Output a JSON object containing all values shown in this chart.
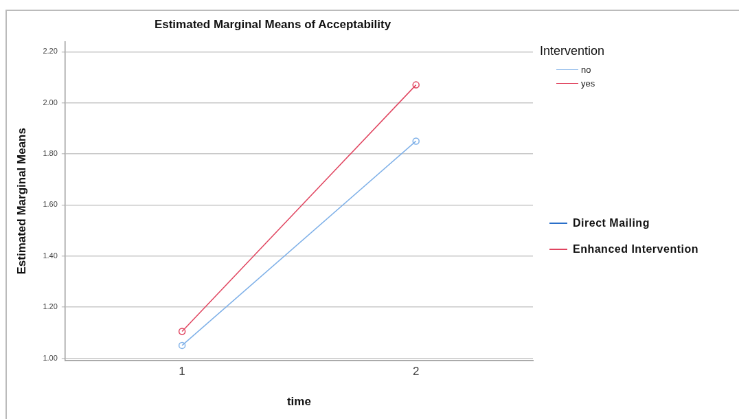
{
  "chart_data": {
    "type": "line",
    "title": "Estimated Marginal Means of Acceptability",
    "xlabel": "time",
    "ylabel": "Estimated Marginal Means",
    "legend_title": "Intervention",
    "categories": [
      "1",
      "2"
    ],
    "series": [
      {
        "name": "no",
        "color": "#7eb0e8",
        "values": [
          1.05,
          1.85
        ]
      },
      {
        "name": "yes",
        "color": "#e0445f",
        "values": [
          1.105,
          2.07
        ]
      }
    ],
    "ylim": [
      0.99,
      2.24
    ],
    "yticks": [
      {
        "value": 1,
        "label": "1.00"
      },
      {
        "value": 1.2,
        "label": "1.20"
      },
      {
        "value": 1.4,
        "label": "1.40"
      },
      {
        "value": 1.6,
        "label": "1.60"
      },
      {
        "value": 1.8,
        "label": "1.80"
      },
      {
        "value": 2,
        "label": "2.00"
      },
      {
        "value": 2.2,
        "label": "2.20"
      }
    ],
    "grid": "y",
    "legend": "top right",
    "marker": "circle",
    "line_style": "solid",
    "annotations": [
      "Direct Mailing",
      "Enhanced Intervention"
    ]
  }
}
